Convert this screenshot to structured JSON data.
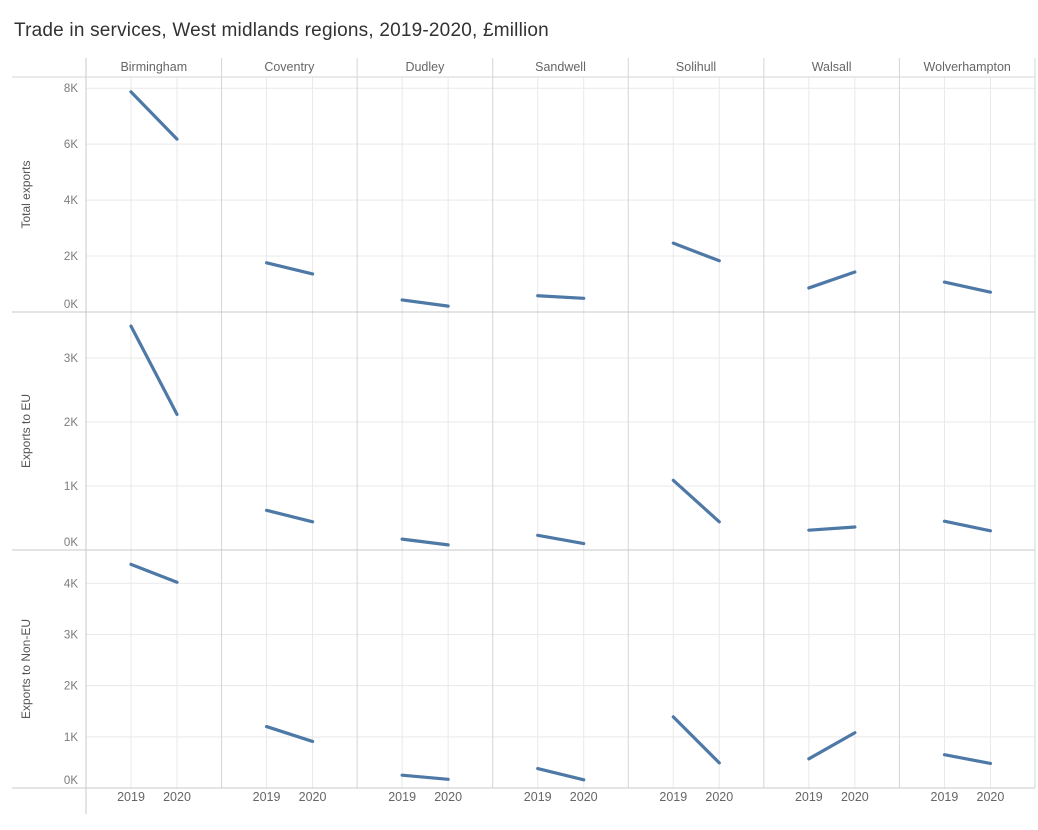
{
  "title": "Trade in services, West midlands regions, 2019-2020, £million",
  "chart_data": {
    "type": "line",
    "layout": "trellis-small-multiples",
    "grid": true,
    "legend": "none",
    "unit": "£million (axis shown in K)",
    "tick_suffix": "K",
    "columns": [
      "Birmingham",
      "Coventry",
      "Dudley",
      "Sandwell",
      "Solihull",
      "Walsall",
      "Wolverhampton"
    ],
    "x": [
      "2019",
      "2020"
    ],
    "rows": [
      {
        "label": "Total exports",
        "ticks": [
          0,
          2,
          4,
          6,
          8
        ],
        "ymax": 8.4,
        "series": [
          {
            "name": "Birmingham",
            "values": [
              7.87,
              6.18
            ]
          },
          {
            "name": "Coventry",
            "values": [
              1.76,
              1.36
            ]
          },
          {
            "name": "Dudley",
            "values": [
              0.43,
              0.21
            ]
          },
          {
            "name": "Sandwell",
            "values": [
              0.58,
              0.49
            ]
          },
          {
            "name": "Solihull",
            "values": [
              2.46,
              1.83
            ]
          },
          {
            "name": "Walsall",
            "values": [
              0.86,
              1.43
            ]
          },
          {
            "name": "Wolverhampton",
            "values": [
              1.07,
              0.71
            ]
          }
        ]
      },
      {
        "label": "Exports to EU",
        "ticks": [
          0,
          1,
          2,
          3
        ],
        "ymax": 3.72,
        "series": [
          {
            "name": "Birmingham",
            "values": [
              3.5,
              2.12
            ]
          },
          {
            "name": "Coventry",
            "values": [
              0.62,
              0.44
            ]
          },
          {
            "name": "Dudley",
            "values": [
              0.17,
              0.08
            ]
          },
          {
            "name": "Sandwell",
            "values": [
              0.23,
              0.1
            ]
          },
          {
            "name": "Solihull",
            "values": [
              1.09,
              0.44
            ]
          },
          {
            "name": "Walsall",
            "values": [
              0.31,
              0.36
            ]
          },
          {
            "name": "Wolverhampton",
            "values": [
              0.45,
              0.3
            ]
          }
        ]
      },
      {
        "label": "Exports to Non-EU",
        "ticks": [
          0,
          1,
          2,
          3,
          4
        ],
        "ymax": 4.65,
        "series": [
          {
            "name": "Birmingham",
            "values": [
              4.37,
              4.02
            ]
          },
          {
            "name": "Coventry",
            "values": [
              1.2,
              0.91
            ]
          },
          {
            "name": "Dudley",
            "values": [
              0.25,
              0.17
            ]
          },
          {
            "name": "Sandwell",
            "values": [
              0.38,
              0.16
            ]
          },
          {
            "name": "Solihull",
            "values": [
              1.39,
              0.49
            ]
          },
          {
            "name": "Walsall",
            "values": [
              0.57,
              1.08
            ]
          },
          {
            "name": "Wolverhampton",
            "values": [
              0.65,
              0.48
            ]
          }
        ]
      }
    ]
  },
  "colors": {
    "line": "#4e79a7",
    "gridline": "#e9e9e9",
    "pane_border": "#d6d6d6",
    "row_border": "#c8c8c8",
    "tick_text": "#7b7b7b",
    "header_text": "#666666",
    "row_label_text": "#555555",
    "title_text": "#323232"
  }
}
